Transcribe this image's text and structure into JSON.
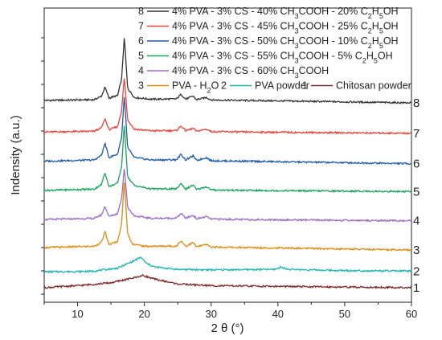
{
  "chart_data": {
    "type": "line",
    "title": "",
    "xlabel": "2 θ (°)",
    "ylabel": "Indensity (a.u.)",
    "xlim": [
      5,
      60
    ],
    "xticks": [
      10,
      20,
      30,
      40,
      50,
      60
    ],
    "y_tick_labels": false,
    "grid": false,
    "legend_position": "top",
    "legend": [
      {
        "text": "8",
        "name": "4% PVA - 3% CS - 40% CH3COOH - 20% C2H5OH",
        "color": "#333333"
      },
      {
        "text": "7",
        "name": "4% PVA - 3% CS - 45% CH3COOH - 25% C2H5OH",
        "color": "#e8443a"
      },
      {
        "text": "6",
        "name": "4% PVA - 3% CS - 50% CH3COOH - 10% C2H5OH",
        "color": "#1f5aa6"
      },
      {
        "text": "5",
        "name": "4% PVA - 3% CS - 55% CH3COOH - 5% C2H5OH",
        "color": "#1aa45c"
      },
      {
        "text": "4",
        "name": "4% PVA - 3% CS - 60% CH3COOH",
        "color": "#9a6dc2"
      },
      {
        "text": "3",
        "name": "PVA - H2O",
        "color": "#e08b12"
      },
      {
        "text": "2",
        "name": "PVA powder",
        "color": "#1fb5b0"
      },
      {
        "text": "1",
        "name": "Chitosan powder",
        "color": "#7a2a2a"
      }
    ],
    "series": [
      {
        "label": "8",
        "color": "#333333",
        "baseline": 8.0,
        "points": [
          [
            5,
            0
          ],
          [
            12.5,
            0.03
          ],
          [
            13.6,
            0.18
          ],
          [
            14.1,
            0.55
          ],
          [
            14.7,
            0.1
          ],
          [
            16.0,
            0.2
          ],
          [
            16.6,
            0.9
          ],
          [
            17.0,
            2.6
          ],
          [
            17.5,
            0.5
          ],
          [
            18.5,
            0.12
          ],
          [
            21,
            0.05
          ],
          [
            24.8,
            0.06
          ],
          [
            25.5,
            0.25
          ],
          [
            26.2,
            0.05
          ],
          [
            27.3,
            0.18
          ],
          [
            27.8,
            0.03
          ],
          [
            29.3,
            0.12
          ],
          [
            30,
            0.02
          ],
          [
            35,
            0
          ],
          [
            60,
            -0.1
          ]
        ]
      },
      {
        "label": "7",
        "color": "#e8443a",
        "baseline": 6.7,
        "points": [
          [
            5,
            0
          ],
          [
            12.5,
            0.03
          ],
          [
            13.6,
            0.18
          ],
          [
            14.1,
            0.55
          ],
          [
            14.7,
            0.1
          ],
          [
            16.0,
            0.22
          ],
          [
            16.6,
            0.9
          ],
          [
            17.0,
            2.25
          ],
          [
            17.5,
            0.5
          ],
          [
            18.5,
            0.12
          ],
          [
            21,
            0.05
          ],
          [
            24.8,
            0.06
          ],
          [
            25.5,
            0.25
          ],
          [
            26.2,
            0.05
          ],
          [
            27.3,
            0.15
          ],
          [
            27.8,
            0.03
          ],
          [
            29.3,
            0.12
          ],
          [
            30,
            0.02
          ],
          [
            35,
            0
          ],
          [
            60,
            -0.05
          ]
        ]
      },
      {
        "label": "6",
        "color": "#1f5aa6",
        "baseline": 5.5,
        "points": [
          [
            5,
            0
          ],
          [
            12.5,
            0.05
          ],
          [
            13.6,
            0.25
          ],
          [
            14.1,
            0.75
          ],
          [
            14.7,
            0.15
          ],
          [
            16.0,
            0.3
          ],
          [
            16.6,
            1.0
          ],
          [
            17.0,
            2.7
          ],
          [
            17.5,
            0.55
          ],
          [
            18.5,
            0.15
          ],
          [
            21,
            0.05
          ],
          [
            24.8,
            0.06
          ],
          [
            25.5,
            0.28
          ],
          [
            26.2,
            0.05
          ],
          [
            27.3,
            0.22
          ],
          [
            27.8,
            0.03
          ],
          [
            29.3,
            0.15
          ],
          [
            30,
            0.02
          ],
          [
            35,
            0
          ],
          [
            60,
            -0.1
          ]
        ]
      },
      {
        "label": "5",
        "color": "#1aa45c",
        "baseline": 4.3,
        "points": [
          [
            5,
            0
          ],
          [
            12.5,
            0.05
          ],
          [
            13.6,
            0.25
          ],
          [
            14.1,
            0.75
          ],
          [
            14.7,
            0.15
          ],
          [
            16.0,
            0.3
          ],
          [
            16.6,
            1.0
          ],
          [
            17.0,
            2.7
          ],
          [
            17.5,
            0.55
          ],
          [
            18.5,
            0.2
          ],
          [
            21,
            0.06
          ],
          [
            24.8,
            0.06
          ],
          [
            25.5,
            0.28
          ],
          [
            26.2,
            0.05
          ],
          [
            27.3,
            0.22
          ],
          [
            27.8,
            0.03
          ],
          [
            29.3,
            0.15
          ],
          [
            30,
            0.02
          ],
          [
            35,
            0
          ],
          [
            60,
            -0.05
          ]
        ]
      },
      {
        "label": "4",
        "color": "#9a6dc2",
        "baseline": 3.1,
        "points": [
          [
            5,
            0
          ],
          [
            12.5,
            0.05
          ],
          [
            13.6,
            0.2
          ],
          [
            14.1,
            0.55
          ],
          [
            14.7,
            0.12
          ],
          [
            16.0,
            0.25
          ],
          [
            16.6,
            0.9
          ],
          [
            17.0,
            2.15
          ],
          [
            17.5,
            0.5
          ],
          [
            18.5,
            0.15
          ],
          [
            21,
            0.05
          ],
          [
            24.8,
            0.06
          ],
          [
            25.5,
            0.25
          ],
          [
            26.2,
            0.05
          ],
          [
            27.3,
            0.18
          ],
          [
            27.8,
            0.03
          ],
          [
            29.3,
            0.12
          ],
          [
            30,
            0.02
          ],
          [
            35,
            0
          ],
          [
            60,
            -0.05
          ]
        ]
      },
      {
        "label": "3",
        "color": "#e08b12",
        "baseline": 1.95,
        "points": [
          [
            5,
            0
          ],
          [
            12.5,
            0.05
          ],
          [
            13.6,
            0.22
          ],
          [
            14.1,
            0.65
          ],
          [
            14.7,
            0.12
          ],
          [
            16.0,
            0.25
          ],
          [
            16.6,
            1.0
          ],
          [
            17.0,
            2.75
          ],
          [
            17.5,
            0.55
          ],
          [
            18.2,
            0.15
          ],
          [
            20,
            0.05
          ],
          [
            24.8,
            0.06
          ],
          [
            25.5,
            0.28
          ],
          [
            26.2,
            0.05
          ],
          [
            27.3,
            0.2
          ],
          [
            27.8,
            0.03
          ],
          [
            29.3,
            0.12
          ],
          [
            30,
            0.02
          ],
          [
            35,
            0
          ],
          [
            60,
            -0.1
          ]
        ]
      },
      {
        "label": "2",
        "color": "#1fb5b0",
        "baseline": 0.95,
        "points": [
          [
            5,
            0
          ],
          [
            12,
            0.02
          ],
          [
            16,
            0.15
          ],
          [
            18,
            0.4
          ],
          [
            19.5,
            0.6
          ],
          [
            20.3,
            0.35
          ],
          [
            21.5,
            0.2
          ],
          [
            25,
            0.1
          ],
          [
            30,
            0.08
          ],
          [
            39.5,
            0.1
          ],
          [
            40.5,
            0.2
          ],
          [
            41.5,
            0.1
          ],
          [
            50,
            0.05
          ],
          [
            60,
            0.03
          ]
        ]
      },
      {
        "label": "1",
        "color": "#7a2a2a",
        "baseline": 0.3,
        "points": [
          [
            5,
            0
          ],
          [
            8,
            0.05
          ],
          [
            10,
            0.08
          ],
          [
            15,
            0.2
          ],
          [
            18,
            0.38
          ],
          [
            19.8,
            0.5
          ],
          [
            21.5,
            0.35
          ],
          [
            25,
            0.15
          ],
          [
            30,
            0.08
          ],
          [
            40,
            0.05
          ],
          [
            60,
            0
          ]
        ]
      }
    ]
  }
}
